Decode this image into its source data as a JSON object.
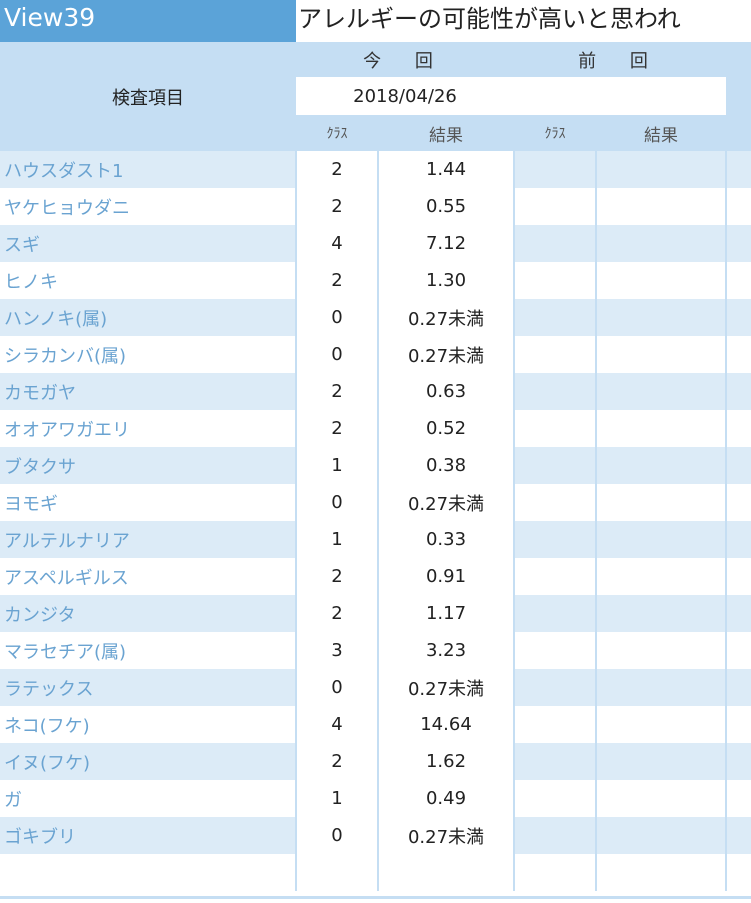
{
  "header": {
    "brand": "View39",
    "title": "アレルギーの可能性が高いと思われ"
  },
  "table": {
    "item_header": "検査項目",
    "current_label": "今 回",
    "previous_label": "前 回",
    "current_date": "2018/04/26",
    "previous_date": "",
    "class_label": "ｸﾗｽ",
    "result_label": "結果",
    "rows": [
      {
        "name": "ハウスダスト1",
        "class": "2",
        "result": "1.44"
      },
      {
        "name": "ヤケヒョウダニ",
        "class": "2",
        "result": "0.55"
      },
      {
        "name": "スギ",
        "class": "4",
        "result": "7.12"
      },
      {
        "name": "ヒノキ",
        "class": "2",
        "result": "1.30"
      },
      {
        "name": "ハンノキ(属)",
        "class": "0",
        "result": "0.27未満"
      },
      {
        "name": "シラカンバ(属)",
        "class": "0",
        "result": "0.27未満"
      },
      {
        "name": "カモガヤ",
        "class": "2",
        "result": "0.63"
      },
      {
        "name": "オオアワガエリ",
        "class": "2",
        "result": "0.52"
      },
      {
        "name": "ブタクサ",
        "class": "1",
        "result": "0.38"
      },
      {
        "name": "ヨモギ",
        "class": "0",
        "result": "0.27未満"
      },
      {
        "name": "アルテルナリア",
        "class": "1",
        "result": "0.33"
      },
      {
        "name": "アスペルギルス",
        "class": "2",
        "result": "0.91"
      },
      {
        "name": "カンジタ",
        "class": "2",
        "result": "1.17"
      },
      {
        "name": "マラセチア(属)",
        "class": "3",
        "result": "3.23"
      },
      {
        "name": "ラテックス",
        "class": "0",
        "result": "0.27未満"
      },
      {
        "name": "ネコ(フケ)",
        "class": "4",
        "result": "14.64"
      },
      {
        "name": "イヌ(フケ)",
        "class": "2",
        "result": "1.62"
      },
      {
        "name": "ガ",
        "class": "1",
        "result": "0.49"
      },
      {
        "name": "ゴキブリ",
        "class": "0",
        "result": "0.27未満"
      },
      {
        "name": "",
        "class": "",
        "result": ""
      }
    ]
  },
  "colors": {
    "brand_bg": "#5ba3d8",
    "header_bg": "#c5def3",
    "row_shade": "#dcebf7",
    "item_text": "#6aa3d1"
  }
}
